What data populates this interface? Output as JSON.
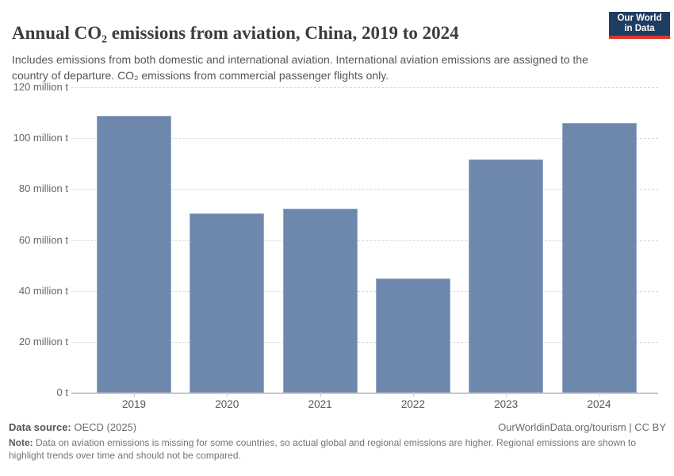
{
  "header": {
    "title": "Annual CO₂ emissions from aviation, China, 2019 to 2024",
    "subtitle": "Includes emissions from both domestic and international aviation. International aviation emissions are assigned to the country of departure. CO₂ emissions from commercial passenger flights only.",
    "logo": {
      "line1": "Our World",
      "line2": "in Data",
      "bg_color": "#1d3d63",
      "accent_color": "#e0342f"
    }
  },
  "chart_data": {
    "type": "bar",
    "title": "Annual CO₂ emissions from aviation, China, 2019 to 2024",
    "categories": [
      "2019",
      "2020",
      "2021",
      "2022",
      "2023",
      "2024"
    ],
    "values": [
      108.9,
      70.4,
      72.3,
      44.9,
      91.6,
      106.0
    ],
    "unit": "million t",
    "xlabel": "",
    "ylabel": "",
    "ylim": [
      0,
      120
    ],
    "grid": true,
    "legend": "none",
    "bar_color": "#6e87ad",
    "y_ticks": [
      {
        "value": 0,
        "label": "0 t"
      },
      {
        "value": 20,
        "label": "20 million t"
      },
      {
        "value": 40,
        "label": "40 million t"
      },
      {
        "value": 60,
        "label": "60 million t"
      },
      {
        "value": 80,
        "label": "80 million t"
      },
      {
        "value": 100,
        "label": "100 million t"
      },
      {
        "value": 120,
        "label": "120 million t"
      }
    ]
  },
  "footer": {
    "source_label": "Data source:",
    "source_value": " OECD (2025)",
    "link": "OurWorldinData.org/tourism | CC BY",
    "note_label": "Note:",
    "note_value": " Data on aviation emissions is missing for some countries, so actual global and regional emissions are higher. Regional emissions are shown to highlight trends over time and should not be compared."
  }
}
